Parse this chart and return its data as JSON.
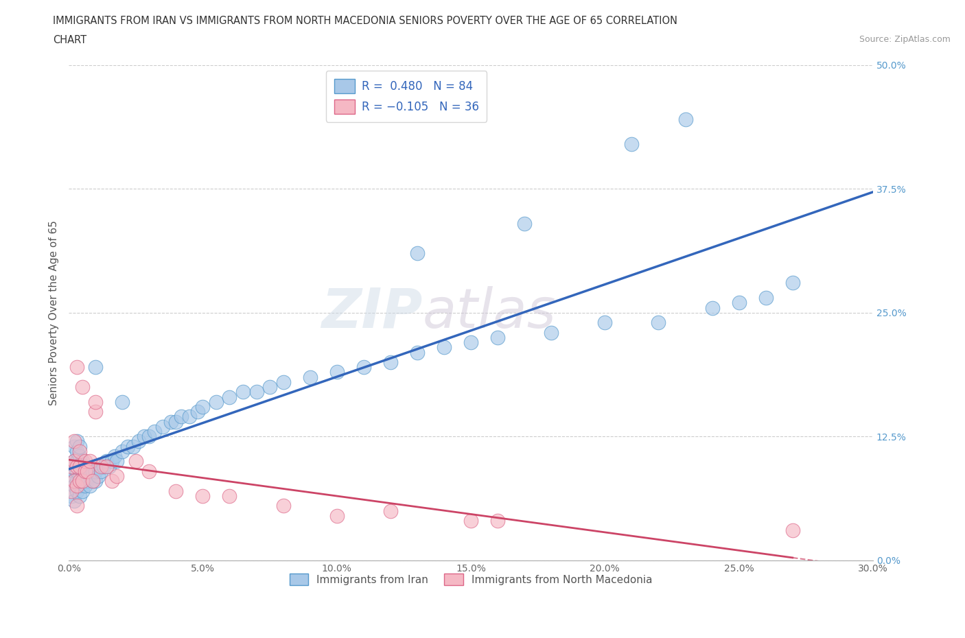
{
  "title_line1": "IMMIGRANTS FROM IRAN VS IMMIGRANTS FROM NORTH MACEDONIA SENIORS POVERTY OVER THE AGE OF 65 CORRELATION",
  "title_line2": "CHART",
  "source": "Source: ZipAtlas.com",
  "ylabel": "Seniors Poverty Over the Age of 65",
  "xlim": [
    0.0,
    0.3
  ],
  "ylim": [
    0.0,
    0.5
  ],
  "xticks": [
    0.0,
    0.05,
    0.1,
    0.15,
    0.2,
    0.25,
    0.3
  ],
  "xticklabels": [
    "0.0%",
    "5.0%",
    "10.0%",
    "15.0%",
    "20.0%",
    "25.0%",
    "30.0%"
  ],
  "yticks": [
    0.0,
    0.125,
    0.25,
    0.375,
    0.5
  ],
  "yticklabels": [
    "0.0%",
    "12.5%",
    "25.0%",
    "37.5%",
    "50.0%"
  ],
  "iran_color": "#a8c8e8",
  "iran_edge_color": "#5599cc",
  "iran_line_color": "#3366bb",
  "macedonia_color": "#f5b8c4",
  "macedonia_edge_color": "#dd6688",
  "macedonia_line_color": "#cc4466",
  "R_iran": 0.48,
  "N_iran": 84,
  "R_macedonia": -0.105,
  "N_macedonia": 36,
  "legend_label_iran": "Immigrants from Iran",
  "legend_label_macedonia": "Immigrants from North Macedonia",
  "watermark_zip": "ZIP",
  "watermark_atlas": "atlas",
  "background_color": "#ffffff",
  "grid_color": "#cccccc",
  "iran_x": [
    0.001,
    0.001,
    0.001,
    0.002,
    0.002,
    0.002,
    0.002,
    0.002,
    0.003,
    0.003,
    0.003,
    0.003,
    0.003,
    0.003,
    0.004,
    0.004,
    0.004,
    0.004,
    0.004,
    0.004,
    0.005,
    0.005,
    0.005,
    0.005,
    0.006,
    0.006,
    0.006,
    0.007,
    0.007,
    0.008,
    0.008,
    0.009,
    0.009,
    0.01,
    0.01,
    0.011,
    0.012,
    0.013,
    0.014,
    0.015,
    0.016,
    0.017,
    0.018,
    0.02,
    0.022,
    0.024,
    0.026,
    0.028,
    0.03,
    0.032,
    0.035,
    0.038,
    0.04,
    0.042,
    0.045,
    0.048,
    0.05,
    0.055,
    0.06,
    0.065,
    0.07,
    0.075,
    0.08,
    0.09,
    0.1,
    0.11,
    0.12,
    0.13,
    0.14,
    0.15,
    0.16,
    0.18,
    0.2,
    0.22,
    0.24,
    0.25,
    0.26,
    0.27,
    0.13,
    0.17,
    0.21,
    0.23,
    0.01,
    0.02
  ],
  "iran_y": [
    0.065,
    0.08,
    0.095,
    0.06,
    0.075,
    0.09,
    0.1,
    0.115,
    0.07,
    0.08,
    0.09,
    0.1,
    0.11,
    0.12,
    0.065,
    0.075,
    0.085,
    0.095,
    0.105,
    0.115,
    0.07,
    0.08,
    0.09,
    0.1,
    0.075,
    0.085,
    0.095,
    0.08,
    0.09,
    0.075,
    0.085,
    0.08,
    0.09,
    0.08,
    0.09,
    0.085,
    0.09,
    0.095,
    0.1,
    0.095,
    0.1,
    0.105,
    0.1,
    0.11,
    0.115,
    0.115,
    0.12,
    0.125,
    0.125,
    0.13,
    0.135,
    0.14,
    0.14,
    0.145,
    0.145,
    0.15,
    0.155,
    0.16,
    0.165,
    0.17,
    0.17,
    0.175,
    0.18,
    0.185,
    0.19,
    0.195,
    0.2,
    0.21,
    0.215,
    0.22,
    0.225,
    0.23,
    0.24,
    0.24,
    0.255,
    0.26,
    0.265,
    0.28,
    0.31,
    0.34,
    0.42,
    0.445,
    0.195,
    0.16
  ],
  "macedonia_x": [
    0.001,
    0.001,
    0.002,
    0.002,
    0.002,
    0.003,
    0.003,
    0.003,
    0.004,
    0.004,
    0.004,
    0.005,
    0.005,
    0.006,
    0.006,
    0.007,
    0.008,
    0.009,
    0.01,
    0.01,
    0.012,
    0.014,
    0.016,
    0.018,
    0.025,
    0.03,
    0.04,
    0.05,
    0.06,
    0.08,
    0.1,
    0.12,
    0.15,
    0.16,
    0.27,
    0.003
  ],
  "macedonia_y": [
    0.07,
    0.095,
    0.08,
    0.1,
    0.12,
    0.075,
    0.095,
    0.195,
    0.08,
    0.095,
    0.11,
    0.08,
    0.175,
    0.09,
    0.1,
    0.09,
    0.1,
    0.08,
    0.15,
    0.16,
    0.095,
    0.095,
    0.08,
    0.085,
    0.1,
    0.09,
    0.07,
    0.065,
    0.065,
    0.055,
    0.045,
    0.05,
    0.04,
    0.04,
    0.03,
    0.055
  ]
}
